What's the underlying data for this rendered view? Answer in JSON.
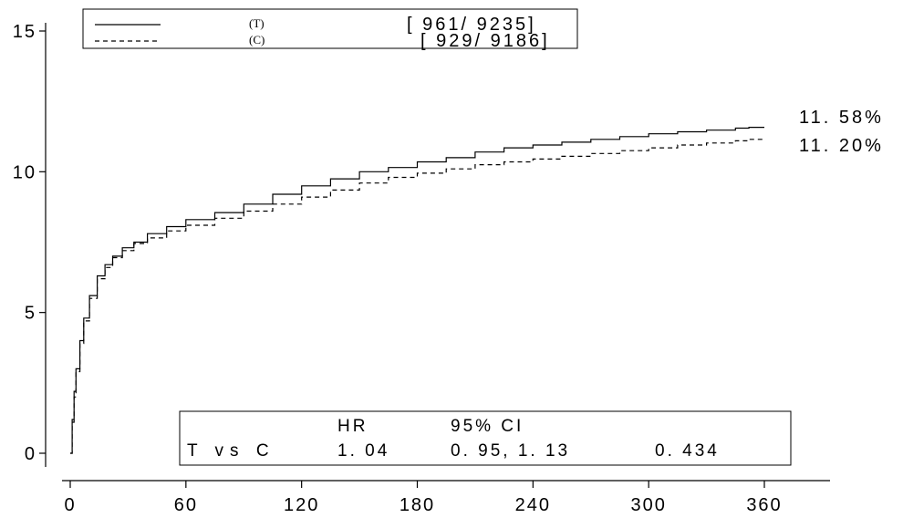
{
  "chart_data": {
    "type": "line",
    "title": "",
    "xlabel": "",
    "ylabel": "",
    "xlim": [
      0,
      360
    ],
    "ylim": [
      0,
      15
    ],
    "x_ticks": [
      0,
      60,
      120,
      180,
      240,
      300,
      360
    ],
    "y_ticks": [
      0,
      5,
      10,
      15
    ],
    "grid": false,
    "legend_position": "top-left",
    "series": [
      {
        "code": "(T)",
        "count": "[ 961/ 9235]",
        "end_label": "11. 58%",
        "line_style": "solid",
        "x": [
          0,
          1,
          2,
          3,
          5,
          7,
          10,
          14,
          18,
          22,
          27,
          33,
          40,
          50,
          60,
          75,
          90,
          105,
          120,
          135,
          150,
          165,
          180,
          195,
          210,
          225,
          240,
          255,
          270,
          285,
          300,
          315,
          330,
          345,
          352,
          360
        ],
        "y": [
          0,
          1.2,
          2.2,
          3.0,
          4.0,
          4.8,
          5.6,
          6.3,
          6.7,
          7.0,
          7.3,
          7.5,
          7.8,
          8.05,
          8.3,
          8.55,
          8.85,
          9.2,
          9.5,
          9.75,
          10.0,
          10.15,
          10.35,
          10.5,
          10.7,
          10.85,
          10.95,
          11.05,
          11.15,
          11.25,
          11.35,
          11.42,
          11.48,
          11.55,
          11.58,
          11.58
        ]
      },
      {
        "code": "(C)",
        "count": "[ 929/ 9186]",
        "end_label": "11. 20%",
        "line_style": "dashed",
        "x": [
          0,
          1,
          2,
          3,
          5,
          7,
          10,
          14,
          18,
          22,
          27,
          33,
          40,
          50,
          60,
          75,
          90,
          105,
          120,
          135,
          150,
          165,
          180,
          195,
          210,
          225,
          240,
          255,
          270,
          285,
          300,
          315,
          330,
          345,
          352,
          360
        ],
        "y": [
          0,
          1.1,
          2.0,
          2.9,
          3.9,
          4.7,
          5.5,
          6.2,
          6.6,
          6.95,
          7.2,
          7.45,
          7.65,
          7.9,
          8.1,
          8.35,
          8.6,
          8.85,
          9.1,
          9.35,
          9.6,
          9.8,
          9.95,
          10.1,
          10.25,
          10.35,
          10.45,
          10.55,
          10.65,
          10.75,
          10.85,
          10.95,
          11.02,
          11.1,
          11.15,
          11.2
        ]
      }
    ],
    "stats_box": {
      "row1": {
        "hr_header": "HR",
        "ci_header": "95% CI"
      },
      "row2": {
        "comparison": "T vs C",
        "hr": "1. 04",
        "ci": "0. 95, 1. 13",
        "p": "0. 434"
      }
    }
  }
}
